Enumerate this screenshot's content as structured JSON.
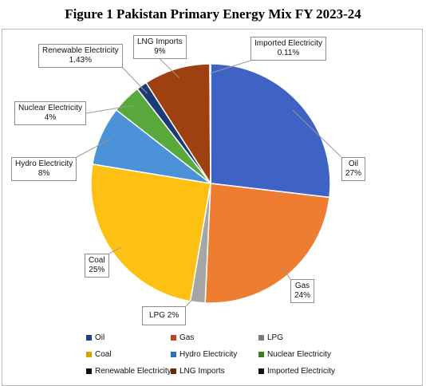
{
  "title": "Figure 1 Pakistan Primary Energy Mix FY 2023-24",
  "chart_data": {
    "type": "pie",
    "title": "Figure 1 Pakistan Primary Energy Mix FY 2023-24",
    "start_angle_deg": 0,
    "direction": "clockwise",
    "slices": [
      {
        "name": "Oil",
        "value": 27,
        "label": "27%",
        "color": "#3f63c4"
      },
      {
        "name": "Gas",
        "value": 24,
        "label": "24%",
        "color": "#ee7d31"
      },
      {
        "name": "LPG",
        "value": 2,
        "label": "2%",
        "color": "#a5a5a5"
      },
      {
        "name": "Coal",
        "value": 25,
        "label": "25%",
        "color": "#fec012"
      },
      {
        "name": "Hydro Electricity",
        "value": 8,
        "label": "8%",
        "color": "#4b92d9"
      },
      {
        "name": "Nuclear Electricity",
        "value": 4,
        "label": "4%",
        "color": "#58a83b"
      },
      {
        "name": "Renewable Electricity",
        "value": 1.43,
        "label": "1.43%",
        "color": "#1e3b78"
      },
      {
        "name": "LNG Imports",
        "value": 9,
        "label": "9%",
        "color": "#9e4010"
      },
      {
        "name": "Imported Electricity",
        "value": 0.11,
        "label": "0.11%",
        "color": "#5c5c5c"
      }
    ],
    "legend": {
      "position": "bottom",
      "entries": [
        "Oil",
        "Gas",
        "LPG",
        "Coal",
        "Hydro Electricity",
        "Nuclear Electricity",
        "Renewable Electricity",
        "LNG Imports",
        "Imported Electricity"
      ],
      "colors": [
        "#23408f",
        "#c0432a",
        "#7a7a7a",
        "#d9a400",
        "#2f6fb8",
        "#3a7d23",
        "#111111",
        "#6b2a0a",
        "#111111"
      ]
    }
  }
}
